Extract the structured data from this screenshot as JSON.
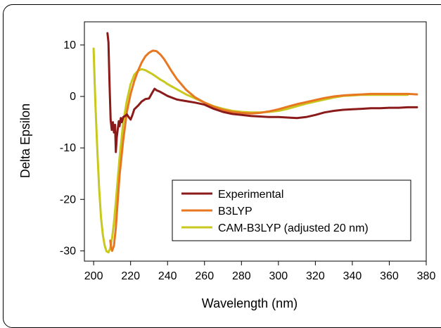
{
  "chart_data": {
    "type": "line",
    "xlabel": "Wavelength (nm)",
    "ylabel": "Delta Epsilon",
    "xlim": [
      195,
      380
    ],
    "ylim": [
      -32,
      14.5
    ],
    "x_ticks": [
      200,
      220,
      240,
      260,
      280,
      300,
      320,
      340,
      360,
      380
    ],
    "y_ticks": [
      10,
      0,
      -10,
      -20,
      -30
    ],
    "grid": false,
    "legend_position": "bottom-right",
    "series": [
      {
        "name": "Experimental",
        "color": "#8B1A1A",
        "x": [
          207.5,
          208.0,
          208.6,
          209.2,
          209.8,
          210.4,
          211.0,
          211.6,
          212.0,
          212.5,
          213.0,
          213.6,
          214.0,
          214.7,
          215.2,
          216.0,
          217.0,
          218.0,
          219.0,
          220.0,
          221.0,
          222.0,
          224.0,
          226.0,
          228.0,
          230.0,
          232.0,
          233.0,
          234.0,
          236.0,
          240.0,
          245.0,
          250.0,
          255.0,
          260.0,
          265.0,
          270.0,
          275.0,
          280.0,
          285.0,
          290.0,
          295.0,
          300.0,
          305.0,
          310.0,
          315.0,
          320.0,
          325.0,
          330.0,
          335.0,
          340.0,
          345.0,
          350.0,
          355.0,
          360.0,
          365.0,
          370.0,
          375.0
        ],
        "y": [
          12.3,
          10.5,
          2.5,
          -4.5,
          -6.5,
          -5.0,
          -7.0,
          -5.5,
          -10.8,
          -8.0,
          -6.5,
          -4.8,
          -5.8,
          -4.2,
          -5.0,
          -4.0,
          -3.8,
          -3.5,
          -4.0,
          -4.5,
          -3.6,
          -2.5,
          -1.8,
          -1.0,
          -0.5,
          -0.4,
          0.9,
          1.5,
          1.2,
          0.9,
          0.1,
          -0.6,
          -0.9,
          -1.2,
          -1.6,
          -2.4,
          -3.0,
          -3.4,
          -3.6,
          -3.8,
          -3.9,
          -4.0,
          -4.0,
          -4.1,
          -4.2,
          -4.0,
          -3.6,
          -3.1,
          -2.8,
          -2.6,
          -2.5,
          -2.4,
          -2.3,
          -2.3,
          -2.2,
          -2.2,
          -2.1,
          -2.1
        ]
      },
      {
        "name": "B3LYP",
        "color": "#E87722",
        "x": [
          209.0,
          209.5,
          210.0,
          211.0,
          212.0,
          213.0,
          214.0,
          216.0,
          218.0,
          220.0,
          222.0,
          224.0,
          226.0,
          228.0,
          230.0,
          232.0,
          234.0,
          236.0,
          238.0,
          240.0,
          242.0,
          245.0,
          250.0,
          255.0,
          260.0,
          265.0,
          270.0,
          275.0,
          280.0,
          285.0,
          290.0,
          295.0,
          300.0,
          305.0,
          310.0,
          315.0,
          320.0,
          325.0,
          330.0,
          335.0,
          340.0,
          345.0,
          350.0,
          355.0,
          360.0,
          365.0,
          370.0,
          375.0
        ],
        "y": [
          -28.0,
          -29.5,
          -30.0,
          -29.0,
          -25.5,
          -20.5,
          -15.5,
          -8.5,
          -3.0,
          0.5,
          3.0,
          5.0,
          6.6,
          7.8,
          8.5,
          8.9,
          8.8,
          8.2,
          7.3,
          6.2,
          5.0,
          3.4,
          1.3,
          -0.2,
          -1.2,
          -2.0,
          -2.6,
          -3.0,
          -3.2,
          -3.3,
          -3.2,
          -2.9,
          -2.5,
          -2.0,
          -1.5,
          -1.1,
          -0.7,
          -0.3,
          0.0,
          0.2,
          0.3,
          0.4,
          0.5,
          0.5,
          0.5,
          0.5,
          0.5,
          0.4
        ]
      },
      {
        "name": "CAM-B3LYP (adjusted 20 nm)",
        "color": "#C8C81E",
        "x": [
          200.0,
          200.5,
          201.0,
          202.0,
          203.0,
          204.0,
          205.0,
          206.0,
          207.0,
          208.0,
          209.0,
          210.0,
          211.0,
          212.0,
          214.0,
          216.0,
          218.0,
          220.0,
          222.0,
          224.0,
          226.0,
          228.0,
          230.0,
          232.0,
          234.0,
          236.0,
          238.0,
          240.0,
          245.0,
          250.0,
          255.0,
          260.0,
          265.0,
          270.0,
          275.0,
          280.0,
          285.0,
          290.0,
          295.0,
          300.0,
          305.0,
          310.0,
          315.0,
          320.0,
          325.0,
          330.0,
          335.0,
          340.0,
          345.0,
          350.0,
          355.0,
          360.0,
          365.0,
          370.0
        ],
        "y": [
          9.3,
          3.5,
          -2.0,
          -10.5,
          -18.0,
          -23.5,
          -27.0,
          -29.0,
          -30.1,
          -30.3,
          -29.5,
          -27.5,
          -24.5,
          -20.5,
          -12.0,
          -5.0,
          -0.8,
          2.4,
          4.2,
          5.0,
          5.3,
          5.1,
          4.7,
          4.3,
          3.8,
          3.3,
          2.9,
          2.4,
          1.4,
          0.4,
          -0.4,
          -1.2,
          -1.9,
          -2.4,
          -2.8,
          -3.0,
          -3.1,
          -3.1,
          -3.0,
          -2.8,
          -2.4,
          -1.9,
          -1.4,
          -1.0,
          -0.6,
          -0.2,
          0.1,
          0.2,
          0.3,
          0.3,
          0.3,
          0.3,
          0.3,
          0.3
        ]
      }
    ]
  }
}
